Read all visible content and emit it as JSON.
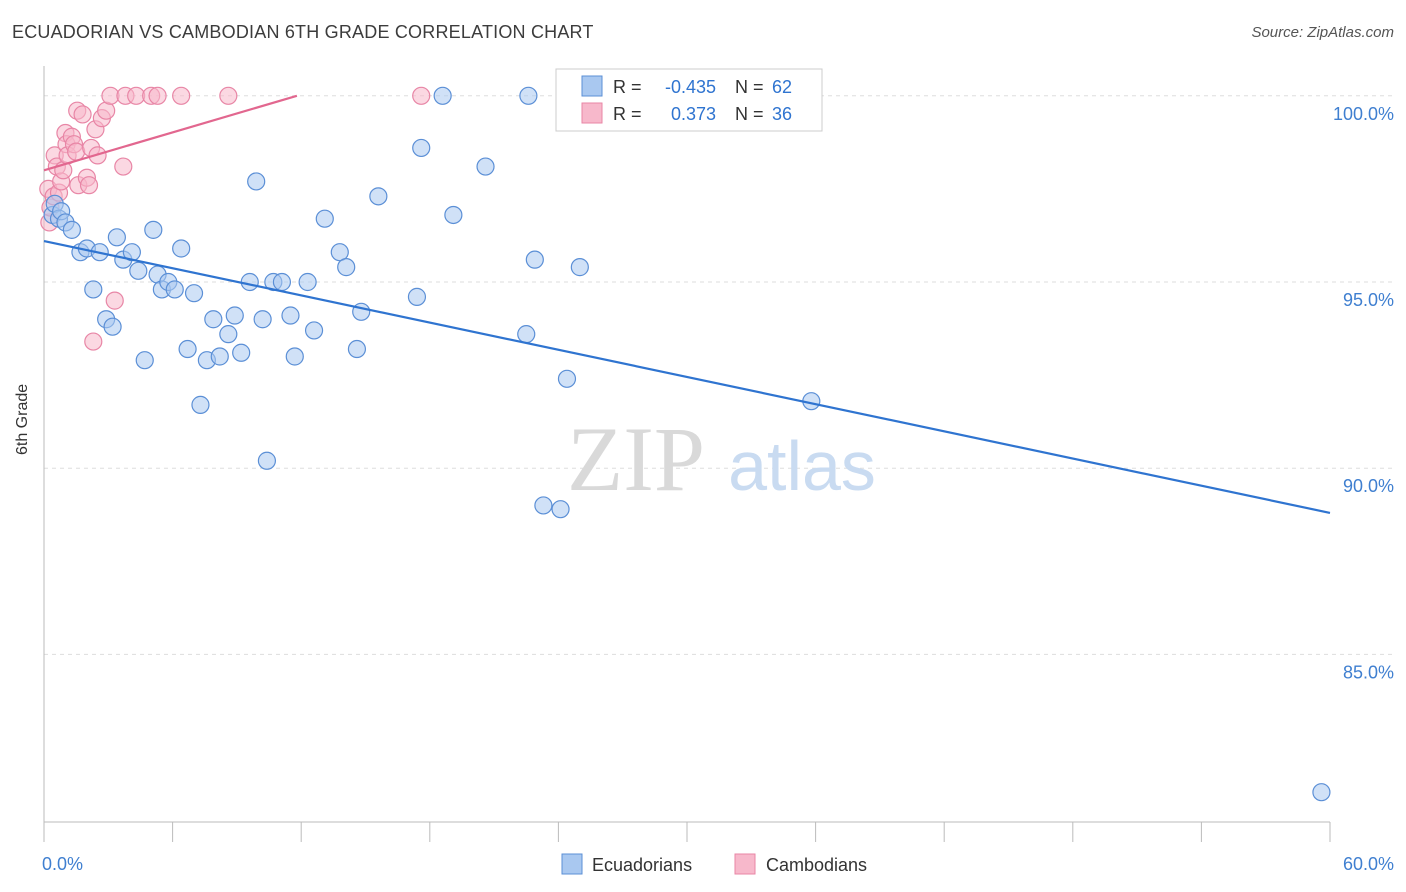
{
  "title": "ECUADORIAN VS CAMBODIAN 6TH GRADE CORRELATION CHART",
  "source": "Source: ZipAtlas.com",
  "watermark": {
    "zip": "ZIP",
    "atlas": "atlas"
  },
  "legend_box": [
    {
      "r_label": "R =",
      "r_value": "-0.435",
      "n_label": "N =",
      "n_value": "62"
    },
    {
      "r_label": "R =",
      "r_value": "0.373",
      "n_label": "N =",
      "n_value": "36"
    }
  ],
  "colors": {
    "ecuadorians_fill": "#a9c8f0",
    "ecuadorians_stroke": "#5b8fd6",
    "ecuadorians_line": "#2f74d0",
    "cambodians_fill": "#f7b8cb",
    "cambodians_stroke": "#e886a6",
    "cambodians_line": "#e2678f",
    "tick_label": "#3f7fd0",
    "grid": "#dddddd"
  },
  "chart_data": {
    "type": "scatter",
    "title": "ECUADORIAN VS CAMBODIAN 6TH GRADE CORRELATION CHART",
    "xlabel": "",
    "ylabel": "6th Grade",
    "xlim": [
      0,
      60
    ],
    "ylim": [
      80.5,
      100.8
    ],
    "x_tick_labels": [
      "0.0%",
      "60.0%"
    ],
    "y_ticks": [
      85,
      90,
      95,
      100
    ],
    "y_tick_labels": [
      "85.0%",
      "90.0%",
      "95.0%",
      "100.0%"
    ],
    "series": [
      {
        "name": "Ecuadorians",
        "R": -0.435,
        "N": 62,
        "trend": {
          "x": [
            0,
            60
          ],
          "y": [
            96.1,
            88.8
          ]
        },
        "points": [
          [
            0.4,
            96.8
          ],
          [
            0.5,
            97.1
          ],
          [
            0.7,
            96.7
          ],
          [
            0.8,
            96.9
          ],
          [
            1.0,
            96.6
          ],
          [
            1.3,
            96.4
          ],
          [
            1.7,
            95.8
          ],
          [
            2.0,
            95.9
          ],
          [
            2.3,
            94.8
          ],
          [
            2.6,
            95.8
          ],
          [
            2.9,
            94.0
          ],
          [
            3.2,
            93.8
          ],
          [
            3.4,
            96.2
          ],
          [
            3.7,
            95.6
          ],
          [
            4.1,
            95.8
          ],
          [
            4.4,
            95.3
          ],
          [
            4.7,
            92.9
          ],
          [
            5.1,
            96.4
          ],
          [
            5.3,
            95.2
          ],
          [
            5.5,
            94.8
          ],
          [
            5.8,
            95.0
          ],
          [
            6.1,
            94.8
          ],
          [
            6.4,
            95.9
          ],
          [
            6.7,
            93.2
          ],
          [
            7.0,
            94.7
          ],
          [
            7.3,
            91.7
          ],
          [
            7.6,
            92.9
          ],
          [
            7.9,
            94.0
          ],
          [
            8.2,
            93.0
          ],
          [
            8.6,
            93.6
          ],
          [
            8.9,
            94.1
          ],
          [
            9.2,
            93.1
          ],
          [
            9.6,
            95.0
          ],
          [
            9.9,
            97.7
          ],
          [
            10.2,
            94.0
          ],
          [
            10.4,
            90.2
          ],
          [
            10.7,
            95.0
          ],
          [
            11.1,
            95.0
          ],
          [
            11.5,
            94.1
          ],
          [
            11.7,
            93.0
          ],
          [
            12.3,
            95.0
          ],
          [
            12.6,
            93.7
          ],
          [
            13.1,
            96.7
          ],
          [
            13.8,
            95.8
          ],
          [
            14.1,
            95.4
          ],
          [
            14.6,
            93.2
          ],
          [
            14.8,
            94.2
          ],
          [
            15.6,
            97.3
          ],
          [
            17.4,
            94.6
          ],
          [
            17.6,
            98.6
          ],
          [
            18.6,
            100.0
          ],
          [
            19.1,
            96.8
          ],
          [
            20.6,
            98.1
          ],
          [
            22.5,
            93.6
          ],
          [
            22.6,
            100.0
          ],
          [
            22.9,
            95.6
          ],
          [
            23.3,
            89.0
          ],
          [
            24.1,
            88.9
          ],
          [
            24.4,
            92.4
          ],
          [
            25.0,
            95.4
          ],
          [
            35.8,
            91.8
          ],
          [
            59.6,
            81.3
          ]
        ]
      },
      {
        "name": "Cambodians",
        "R": 0.373,
        "N": 36,
        "trend": {
          "x": [
            0,
            11.8
          ],
          "y": [
            98.0,
            100.0
          ]
        },
        "points": [
          [
            0.2,
            97.5
          ],
          [
            0.25,
            96.6
          ],
          [
            0.3,
            97.0
          ],
          [
            0.45,
            97.3
          ],
          [
            0.5,
            98.4
          ],
          [
            0.6,
            98.1
          ],
          [
            0.7,
            97.4
          ],
          [
            0.8,
            97.7
          ],
          [
            0.9,
            98.0
          ],
          [
            1.0,
            99.0
          ],
          [
            1.05,
            98.7
          ],
          [
            1.1,
            98.4
          ],
          [
            1.3,
            98.9
          ],
          [
            1.4,
            98.7
          ],
          [
            1.5,
            98.5
          ],
          [
            1.55,
            99.6
          ],
          [
            1.6,
            97.6
          ],
          [
            1.8,
            99.5
          ],
          [
            2.0,
            97.8
          ],
          [
            2.1,
            97.6
          ],
          [
            2.2,
            98.6
          ],
          [
            2.3,
            93.4
          ],
          [
            2.4,
            99.1
          ],
          [
            2.5,
            98.4
          ],
          [
            2.7,
            99.4
          ],
          [
            2.9,
            99.6
          ],
          [
            3.1,
            100.0
          ],
          [
            3.3,
            94.5
          ],
          [
            3.7,
            98.1
          ],
          [
            3.8,
            100.0
          ],
          [
            4.3,
            100.0
          ],
          [
            5.0,
            100.0
          ],
          [
            5.3,
            100.0
          ],
          [
            6.4,
            100.0
          ],
          [
            8.6,
            100.0
          ],
          [
            17.6,
            100.0
          ]
        ]
      }
    ]
  },
  "bottom_legend": [
    {
      "label": "Ecuadorians"
    },
    {
      "label": "Cambodians"
    }
  ]
}
